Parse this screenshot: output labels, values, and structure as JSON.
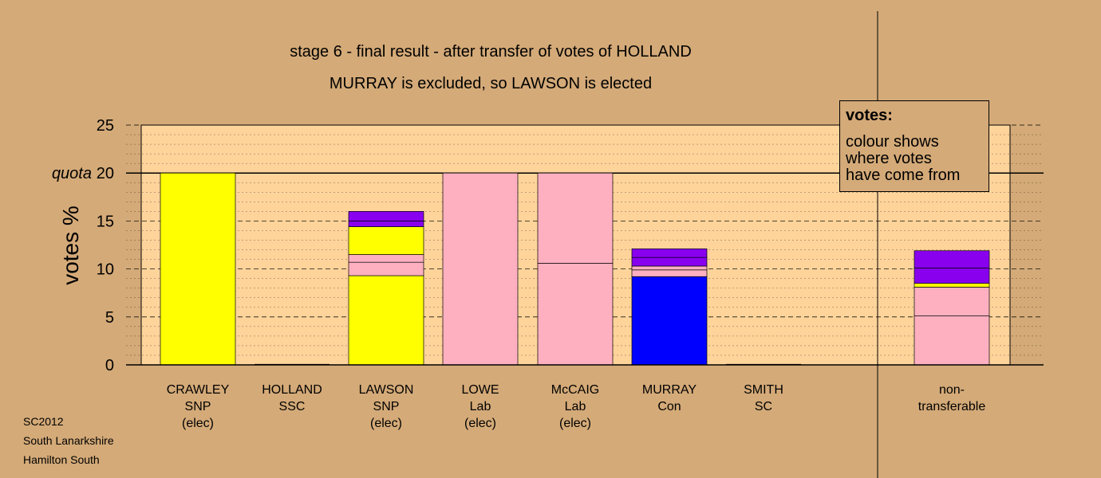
{
  "chart_data": {
    "type": "bar",
    "stacked": true,
    "title": "stage 6 - final result - after transfer of votes of HOLLAND",
    "subtitle": "MURRAY is excluded, so LAWSON is elected",
    "ylabel": "votes %",
    "ylim": [
      0,
      25
    ],
    "yticks": [
      0,
      5,
      10,
      15,
      20,
      25
    ],
    "quota_label": "quota",
    "quota": 20,
    "grid": true,
    "categories": [
      {
        "lines": [
          "CRAWLEY",
          "SNP",
          "(elec)"
        ]
      },
      {
        "lines": [
          "HOLLAND",
          "SSC"
        ]
      },
      {
        "lines": [
          "LAWSON",
          "SNP",
          "(elec)"
        ]
      },
      {
        "lines": [
          "LOWE",
          "Lab",
          "(elec)"
        ]
      },
      {
        "lines": [
          "McCAIG",
          "Lab",
          "(elec)"
        ]
      },
      {
        "lines": [
          "MURRAY",
          "Con"
        ]
      },
      {
        "lines": [
          "SMITH",
          "SC"
        ]
      },
      {
        "lines": [
          "non-",
          "transferable"
        ]
      }
    ],
    "segments": [
      [
        {
          "value": 20.0,
          "color": "#ffff00"
        }
      ],
      [],
      [
        {
          "value": 9.3,
          "color": "#ffff00"
        },
        {
          "value": 1.4,
          "color": "#ffb0c0"
        },
        {
          "value": 0.8,
          "color": "#ffb0c0"
        },
        {
          "value": 2.9,
          "color": "#ffff00"
        },
        {
          "value": 0.6,
          "color": "#8800ee"
        },
        {
          "value": 1.0,
          "color": "#8800ee"
        }
      ],
      [
        {
          "value": 20.0,
          "color": "#ffb0c0"
        }
      ],
      [
        {
          "value": 10.6,
          "color": "#ffb0c0"
        },
        {
          "value": 9.4,
          "color": "#ffb0c0"
        }
      ],
      [
        {
          "value": 9.2,
          "color": "#0000ff"
        },
        {
          "value": 0.7,
          "color": "#ffb0c0"
        },
        {
          "value": 0.4,
          "color": "#ffb0c0"
        },
        {
          "value": 0.9,
          "color": "#8800ee"
        },
        {
          "value": 0.9,
          "color": "#8800ee"
        }
      ],
      [],
      [
        {
          "value": 5.1,
          "color": "#ffb0c0"
        },
        {
          "value": 3.0,
          "color": "#ffb0c0"
        },
        {
          "value": 0.4,
          "color": "#ffff00"
        },
        {
          "value": 1.6,
          "color": "#8800ee"
        },
        {
          "value": 1.8,
          "color": "#8800ee"
        }
      ]
    ],
    "colors": {
      "background": "#d4aa78",
      "plot_area": "#ffd49b",
      "SNP": "#ffff00",
      "Lab": "#ffb0c0",
      "Con": "#0000ff",
      "SC": "#8800ee"
    }
  },
  "legend": {
    "title": "votes:",
    "lines": [
      "colour shows",
      "where votes",
      "have come from"
    ]
  },
  "footer": [
    "SC2012",
    "South Lanarkshire",
    "Hamilton South"
  ]
}
